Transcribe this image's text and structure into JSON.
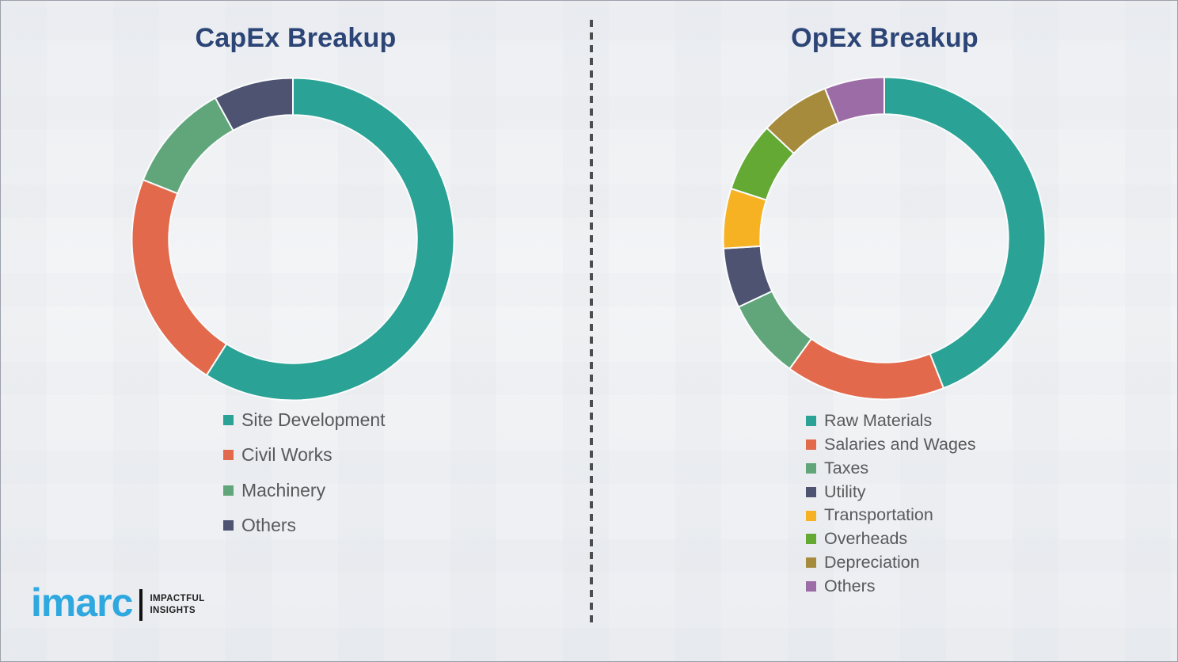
{
  "page": {
    "background_color": "#f3f4f6",
    "border_color": "#9aa0a9",
    "divider": {
      "style": "vertical-dashed-line",
      "color": "#4d4d4d"
    }
  },
  "styles": {
    "title_color": "#2c4576",
    "legend_text_color": "#58595b",
    "segment_gap_color": "#fbfcfd"
  },
  "chart_data": [
    {
      "id": "capex",
      "type": "pie",
      "variant": "donut",
      "title": "CapEx Breakup",
      "labels": [
        "Site Development",
        "Civil Works",
        "Machinery",
        "Others"
      ],
      "values": [
        59,
        22,
        11,
        8
      ],
      "values_note": "percent, estimated from arc angles; no numeric labels shown in image",
      "colors": [
        "#2aa295",
        "#e2694c",
        "#61a67b",
        "#4d5370"
      ],
      "start_angle_deg": 0,
      "direction": "clockwise",
      "inner_radius_ratio": 0.77,
      "legend_position": "bottom-left"
    },
    {
      "id": "opex",
      "type": "pie",
      "variant": "donut",
      "title": "OpEx Breakup",
      "labels": [
        "Raw Materials",
        "Salaries and Wages",
        "Taxes",
        "Utility",
        "Transportation",
        "Overheads",
        "Depreciation",
        "Others"
      ],
      "values": [
        44,
        16,
        8,
        6,
        6,
        7,
        7,
        6
      ],
      "values_note": "percent, estimated from arc angles; no numeric labels shown in image",
      "colors": [
        "#2aa295",
        "#e2694c",
        "#61a67b",
        "#4d5370",
        "#f6b223",
        "#63a934",
        "#a68b3d",
        "#9c6ca6"
      ],
      "start_angle_deg": 0,
      "direction": "clockwise",
      "inner_radius_ratio": 0.77,
      "legend_position": "bottom-left"
    }
  ],
  "branding": {
    "logo_text": "imarc",
    "logo_color": "#2fa8e0",
    "tagline": [
      "IMPACTFUL",
      "INSIGHTS"
    ],
    "tagline_color": "#1f1f1f"
  }
}
